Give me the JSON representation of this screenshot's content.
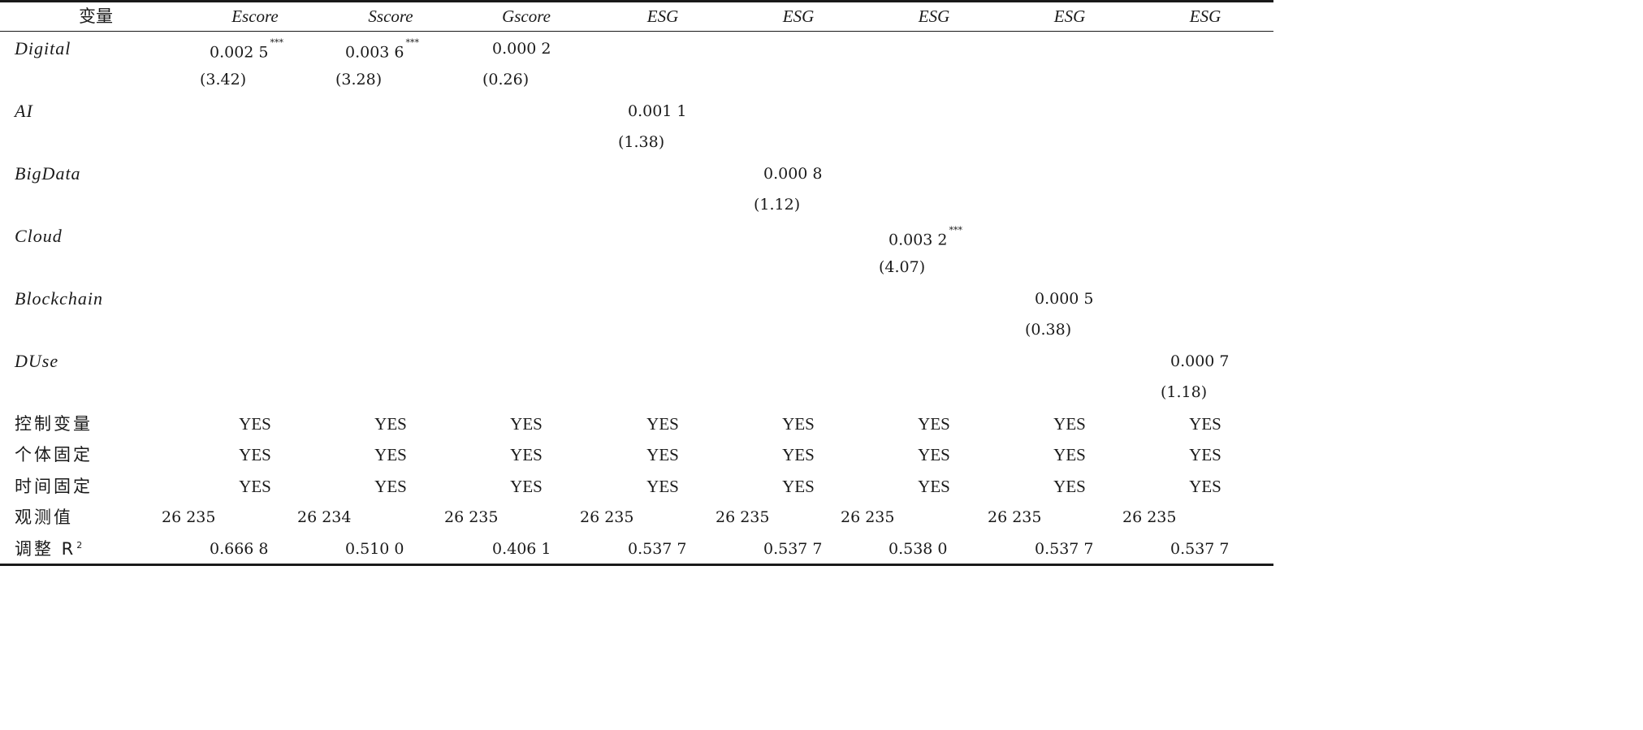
{
  "header": [
    "变量",
    "Escore",
    "Sscore",
    "Gscore",
    "ESG",
    "ESG",
    "ESG",
    "ESG",
    "ESG"
  ],
  "rows": [
    {
      "label": "Digital",
      "col": 1,
      "coef": "0.002 5",
      "stars": "***",
      "t": "(3.42)"
    },
    {
      "label": "Digital",
      "col": 2,
      "coef": "0.003 6",
      "stars": "***",
      "t": "(3.28)"
    },
    {
      "label": "Digital",
      "col": 3,
      "coef": "0.000 2",
      "stars": "",
      "t": "(0.26)"
    },
    {
      "label": "AI",
      "col": 4,
      "coef": "0.001 1",
      "stars": "",
      "t": "(1.38)"
    },
    {
      "label": "BigData",
      "col": 5,
      "coef": "0.000 8",
      "stars": "",
      "t": "(1.12)"
    },
    {
      "label": "Cloud",
      "col": 6,
      "coef": "0.003 2",
      "stars": "***",
      "t": "(4.07)"
    },
    {
      "label": "Blockchain",
      "col": 7,
      "coef": "0.000 5",
      "stars": "",
      "t": "(0.38)"
    },
    {
      "label": "DUse",
      "col": 8,
      "coef": "0.000 7",
      "stars": "",
      "t": "(1.18)"
    }
  ],
  "row_labels": [
    "Digital",
    "AI",
    "BigData",
    "Cloud",
    "Blockchain",
    "DUse"
  ],
  "controls": {
    "labels": [
      "控制变量",
      "个体固定",
      "时间固定"
    ],
    "value": "YES"
  },
  "obs": {
    "label": "观测值",
    "values": [
      "26 235",
      "26 234",
      "26 235",
      "26 235",
      "26 235",
      "26 235",
      "26 235",
      "26 235"
    ]
  },
  "r2": {
    "label": "调整 R",
    "sup": "2",
    "values": [
      "0.666 8",
      "0.510 0",
      "0.406 1",
      "0.537 7",
      "0.537 7",
      "0.538 0",
      "0.537 7",
      "0.537 7"
    ]
  }
}
